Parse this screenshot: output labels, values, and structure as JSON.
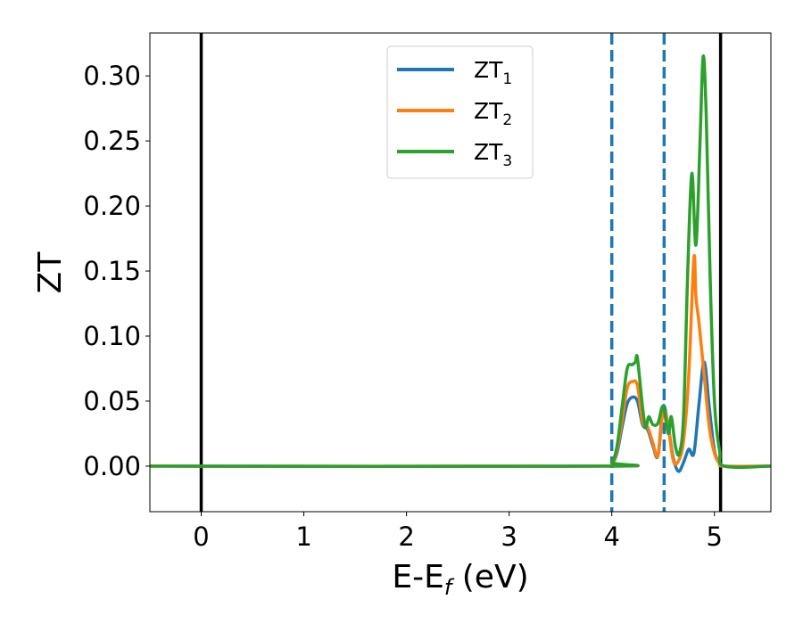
{
  "chart_data": {
    "type": "line",
    "xlabel": {
      "main": "E-E",
      "sub": "f",
      "tail": " (eV)"
    },
    "ylabel": "ZT",
    "xlim": [
      -0.5,
      5.55
    ],
    "ylim": [
      -0.035,
      0.333
    ],
    "x_ticks": [
      0,
      1,
      2,
      3,
      4,
      5
    ],
    "x_tick_labels": [
      "0",
      "1",
      "2",
      "3",
      "4",
      "5"
    ],
    "y_ticks": [
      0.0,
      0.05,
      0.1,
      0.15,
      0.2,
      0.25,
      0.3
    ],
    "y_tick_labels": [
      "0.00",
      "0.05",
      "0.10",
      "0.15",
      "0.20",
      "0.25",
      "0.30"
    ],
    "grid": false,
    "legend_position": "top-center",
    "vertical_lines": [
      {
        "x": 0.0,
        "style": "solid",
        "color": "#000000"
      },
      {
        "x": 4.0,
        "style": "dashed",
        "color": "#1f77b4"
      },
      {
        "x": 4.51,
        "style": "dashed",
        "color": "#1f77b4"
      },
      {
        "x": 5.06,
        "style": "solid",
        "color": "#000000"
      }
    ],
    "series": [
      {
        "name": "ZT",
        "sub": "1",
        "color": "#1f77b4",
        "x": [
          -0.5,
          3.9,
          4.0,
          4.05,
          4.1,
          4.15,
          4.2,
          4.25,
          4.3,
          4.35,
          4.4,
          4.45,
          4.5,
          4.55,
          4.6,
          4.65,
          4.7,
          4.75,
          4.8,
          4.85,
          4.9,
          4.95,
          5.0,
          5.05,
          5.1,
          5.55
        ],
        "y": [
          0.0,
          0.0,
          0.002,
          0.01,
          0.03,
          0.048,
          0.053,
          0.05,
          0.032,
          0.028,
          0.016,
          0.008,
          0.046,
          0.03,
          0.006,
          -0.004,
          0.003,
          0.013,
          0.01,
          0.048,
          0.08,
          0.045,
          0.012,
          0.003,
          0.0,
          0.0
        ]
      },
      {
        "name": "ZT",
        "sub": "2",
        "color": "#ff7f0e",
        "x": [
          -0.5,
          3.9,
          4.0,
          4.05,
          4.1,
          4.15,
          4.2,
          4.25,
          4.3,
          4.35,
          4.4,
          4.45,
          4.5,
          4.55,
          4.6,
          4.65,
          4.7,
          4.75,
          4.8,
          4.82,
          4.85,
          4.9,
          4.95,
          5.0,
          5.05,
          5.1,
          5.55
        ],
        "y": [
          0.0,
          0.0,
          0.002,
          0.012,
          0.035,
          0.06,
          0.065,
          0.062,
          0.034,
          0.03,
          0.018,
          0.008,
          0.042,
          0.03,
          0.004,
          0.004,
          0.02,
          0.07,
          0.16,
          0.13,
          0.11,
          0.07,
          0.03,
          0.01,
          0.002,
          0.0,
          0.0
        ]
      },
      {
        "name": "ZT",
        "sub": "3",
        "color": "#2ca02c",
        "x": [
          -0.5,
          3.9,
          4.0,
          4.05,
          4.1,
          4.15,
          4.2,
          4.23,
          4.25,
          4.3,
          4.33,
          4.36,
          4.4,
          4.45,
          4.5,
          4.55,
          4.58,
          4.62,
          4.66,
          4.7,
          4.74,
          4.78,
          4.82,
          4.86,
          4.89,
          4.92,
          4.96,
          5.0,
          5.05,
          5.1,
          5.55
        ],
        "y": [
          0.0,
          0.0,
          0.003,
          0.015,
          0.045,
          0.075,
          0.078,
          0.08,
          0.083,
          0.045,
          0.03,
          0.038,
          0.032,
          0.033,
          0.046,
          0.025,
          0.038,
          0.015,
          0.01,
          0.04,
          0.15,
          0.225,
          0.17,
          0.25,
          0.315,
          0.27,
          0.14,
          0.05,
          0.012,
          0.0,
          0.0
        ]
      }
    ]
  }
}
